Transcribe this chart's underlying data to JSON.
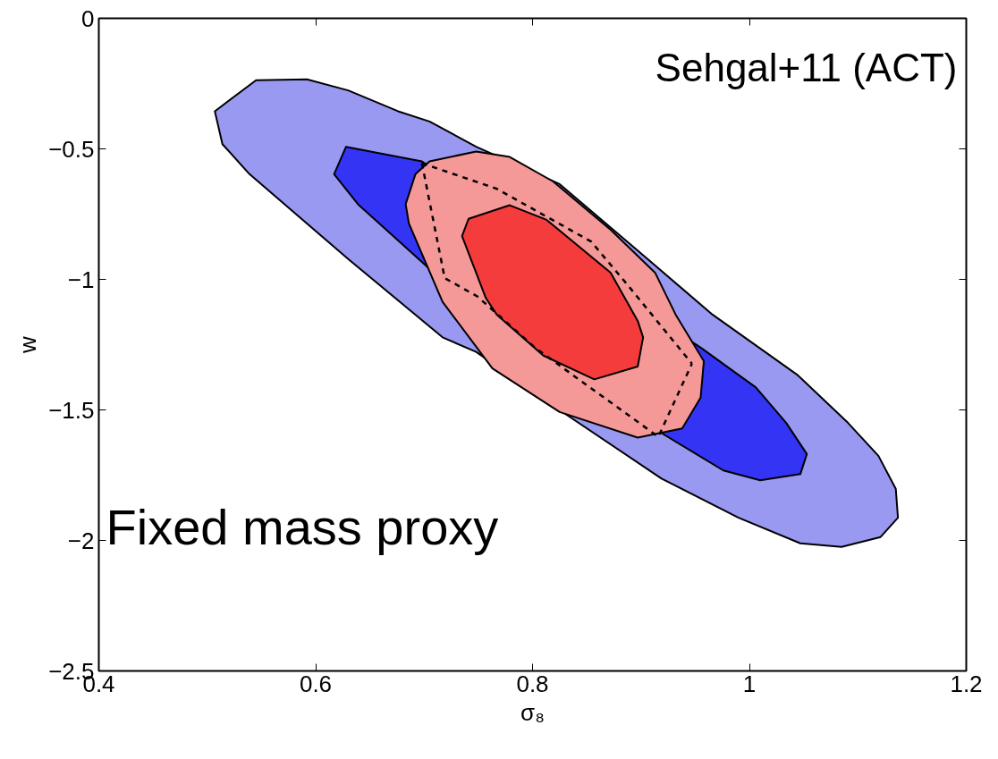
{
  "chart_data": {
    "type": "area",
    "xlabel": "σ₈",
    "ylabel": "w",
    "xlim": [
      0.4,
      1.2
    ],
    "ylim": [
      -2.5,
      0
    ],
    "xticks": [
      0.4,
      0.6,
      0.8,
      1,
      1.2
    ],
    "yticks": [
      0,
      {
        "value": -0.5,
        "label": "−0.5"
      },
      {
        "value": -1,
        "label": "−1"
      },
      {
        "value": -1.5,
        "label": "−1.5"
      },
      {
        "value": -2,
        "label": "−2"
      },
      {
        "value": -2.5,
        "label": "−2.5"
      }
    ],
    "grid": false,
    "annotations": [
      "Sehgal+11 (ACT)",
      "Fixed mass proxy"
    ],
    "series": [
      {
        "color": "#9999f2",
        "x": [
          0.507,
          0.545,
          0.592,
          0.63,
          0.676,
          0.705,
          0.748,
          0.825,
          0.903,
          0.966,
          1.044,
          1.091,
          1.119,
          1.135,
          1.137,
          1.121,
          1.085,
          1.047,
          0.99,
          0.919,
          0.825,
          0.748,
          0.717,
          0.63,
          0.539,
          0.514
        ],
        "values": [
          -0.356,
          -0.237,
          -0.234,
          -0.276,
          -0.356,
          -0.395,
          -0.492,
          -0.635,
          -0.911,
          -1.135,
          -1.365,
          -1.55,
          -1.676,
          -1.802,
          -1.913,
          -1.987,
          -2.025,
          -2.011,
          -1.913,
          -1.763,
          -1.501,
          -1.278,
          -1.222,
          -0.922,
          -0.597,
          -0.482
        ]
      },
      {
        "color": "#3434f5",
        "x": [
          0.628,
          0.698,
          0.956,
          1.006,
          1.034,
          1.053,
          1.047,
          1.01,
          0.976,
          0.919,
          0.705,
          0.639,
          0.617
        ],
        "values": [
          -0.492,
          -0.548,
          -1.264,
          -1.414,
          -1.55,
          -1.669,
          -1.746,
          -1.77,
          -1.732,
          -1.589,
          -0.96,
          -0.712,
          -0.597
        ]
      },
      {
        "color": "#f59898",
        "x": [
          0.705,
          0.748,
          0.779,
          0.819,
          0.872,
          0.913,
          0.932,
          0.958,
          0.955,
          0.938,
          0.897,
          0.825,
          0.763,
          0.717,
          0.686,
          0.683,
          0.692
        ],
        "values": [
          -0.548,
          -0.51,
          -0.531,
          -0.625,
          -0.81,
          -0.974,
          -1.135,
          -1.313,
          -1.453,
          -1.571,
          -1.606,
          -1.508,
          -1.341,
          -1.086,
          -0.786,
          -0.712,
          -0.597
        ]
      },
      {
        "color": "#f53c3c",
        "x": [
          0.779,
          0.813,
          0.872,
          0.897,
          0.902,
          0.897,
          0.857,
          0.81,
          0.767,
          0.757,
          0.735,
          0.741
        ],
        "values": [
          -0.716,
          -0.772,
          -0.974,
          -1.159,
          -1.222,
          -1.334,
          -1.383,
          -1.292,
          -1.135,
          -1.072,
          -0.834,
          -0.768
        ]
      },
      {
        "type": "line",
        "color": "#000000",
        "line_style": "dashed",
        "x": [
          0.698,
          0.767,
          0.854,
          0.888,
          0.947
        ],
        "values": [
          -0.555,
          -0.653,
          -0.855,
          -1.023,
          -1.323
        ]
      },
      {
        "type": "line",
        "color": "#000000",
        "line_style": "dashed",
        "x": [
          0.698,
          0.719,
          0.749,
          0.803,
          0.916,
          0.947
        ],
        "values": [
          -0.555,
          -0.995,
          -1.065,
          -1.264,
          -1.603,
          -1.323
        ]
      }
    ]
  }
}
